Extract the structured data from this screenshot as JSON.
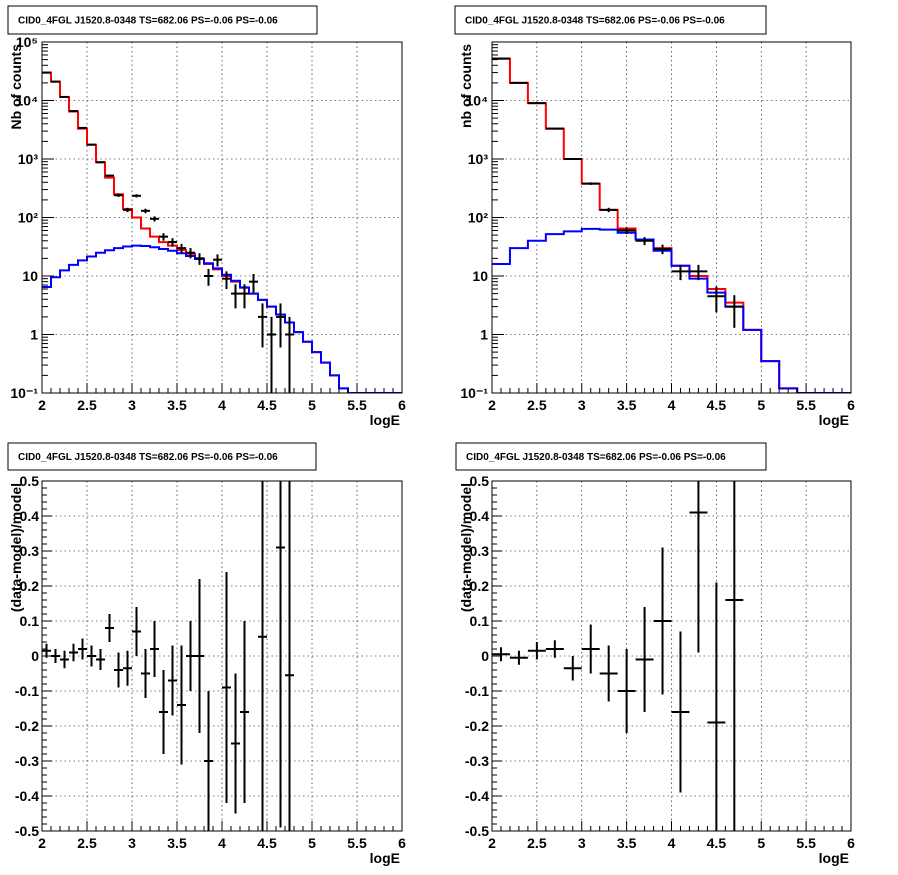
{
  "chart_data": [
    {
      "type": "line",
      "title": "CID0_4FGL J1520.8-0348 TS=682.06 PS=-0.06 PS=-0.06",
      "xlabel": "logE",
      "ylabel": "Nb of counts",
      "xlim": [
        2,
        6
      ],
      "ylim": [
        0.1,
        100000
      ],
      "yscale": "log",
      "grid": true,
      "xticks": [
        "2",
        "2.5",
        "3",
        "3.5",
        "4",
        "4.5",
        "5",
        "5.5",
        "6"
      ],
      "yticks": [
        "10⁻¹",
        "1",
        "10",
        "10²",
        "10³",
        "10⁴",
        "10⁵"
      ],
      "bin_edges": [
        2.0,
        2.1,
        2.2,
        2.3,
        2.4,
        2.5,
        2.6,
        2.7,
        2.8,
        2.9,
        3.0,
        3.1,
        3.2,
        3.3,
        3.4,
        3.5,
        3.6,
        3.7,
        3.8,
        3.9,
        4.0,
        4.1,
        4.2,
        4.3,
        4.4,
        4.5,
        4.6,
        4.7,
        4.8,
        4.9,
        5.0,
        5.1,
        5.2,
        5.3,
        5.4,
        5.5,
        5.6,
        5.7,
        5.8,
        5.9,
        6.0
      ],
      "series": [
        {
          "color": "#ff0000",
          "values": [
            30000,
            21000,
            11500,
            6500,
            3300,
            1750,
            880,
            480,
            250,
            140,
            100,
            65,
            47,
            38,
            33,
            28,
            24,
            20,
            16,
            13,
            10,
            8,
            6.3,
            5,
            3.9,
            3,
            2.2,
            1.6,
            1.1,
            0.75,
            0.5,
            0.33,
            0.2,
            0.12,
            0.1,
            0.1,
            0.1,
            0.1,
            0.1,
            0.1
          ]
        },
        {
          "color": "#0000ff",
          "values": [
            6.5,
            9.5,
            12.5,
            15.5,
            18.5,
            21.5,
            25,
            27.5,
            30,
            32,
            33,
            32.5,
            31,
            29,
            27,
            24.5,
            22,
            19.5,
            16.5,
            13.5,
            10.5,
            8.3,
            6.4,
            5,
            3.9,
            3,
            2.2,
            1.6,
            1.1,
            0.75,
            0.5,
            0.33,
            0.2,
            0.12,
            0.1,
            0.1,
            0.1,
            0.1,
            0.1,
            0.1
          ]
        }
      ],
      "points": [
        {
          "x": 2.05,
          "y": 30000,
          "err": 170
        },
        {
          "x": 2.15,
          "y": 21000,
          "err": 145
        },
        {
          "x": 2.25,
          "y": 11500,
          "err": 107
        },
        {
          "x": 2.35,
          "y": 6600,
          "err": 81
        },
        {
          "x": 2.45,
          "y": 3400,
          "err": 58
        },
        {
          "x": 2.55,
          "y": 1760,
          "err": 42
        },
        {
          "x": 2.65,
          "y": 880,
          "err": 30
        },
        {
          "x": 2.75,
          "y": 520,
          "err": 23
        },
        {
          "x": 2.85,
          "y": 240,
          "err": 15
        },
        {
          "x": 2.95,
          "y": 135,
          "err": 11.5
        },
        {
          "x": 3.05,
          "y": 235,
          "err": 15
        },
        {
          "x": 3.15,
          "y": 130,
          "err": 11.4
        },
        {
          "x": 3.25,
          "y": 95,
          "err": 9.7
        },
        {
          "x": 3.35,
          "y": 47,
          "err": 6.9
        },
        {
          "x": 3.45,
          "y": 38,
          "err": 6.2
        },
        {
          "x": 3.55,
          "y": 30,
          "err": 5.5
        },
        {
          "x": 3.65,
          "y": 25,
          "err": 5
        },
        {
          "x": 3.75,
          "y": 20,
          "err": 4.5
        },
        {
          "x": 3.85,
          "y": 10,
          "err": 3.2
        },
        {
          "x": 3.95,
          "y": 19,
          "err": 4.4
        },
        {
          "x": 4.05,
          "y": 9,
          "err": 3
        },
        {
          "x": 4.15,
          "y": 5,
          "err": 2.2
        },
        {
          "x": 4.25,
          "y": 5,
          "err": 2.2
        },
        {
          "x": 4.35,
          "y": 8,
          "err": 2.8
        },
        {
          "x": 4.45,
          "y": 2,
          "err": 1.4
        },
        {
          "x": 4.55,
          "y": 1,
          "err": 1
        },
        {
          "x": 4.65,
          "y": 2,
          "err": 1.4
        },
        {
          "x": 4.75,
          "y": 1,
          "err": 1
        }
      ]
    },
    {
      "type": "line",
      "title": "CID0_4FGL J1520.8-0348 TS=682.06 PS=-0.06 PS=-0.06",
      "xlabel": "logE",
      "ylabel": "nb of counts",
      "xlim": [
        2,
        6
      ],
      "ylim": [
        0.1,
        100000
      ],
      "yscale": "log",
      "grid": true,
      "xticks": [
        "2",
        "2.5",
        "3",
        "3.5",
        "4",
        "4.5",
        "5",
        "5.5",
        "6"
      ],
      "yticks": [
        "10⁻¹",
        "1",
        "10",
        "10²",
        "10³",
        "10⁴"
      ],
      "bin_edges": [
        2.0,
        2.2,
        2.4,
        2.6,
        2.8,
        3.0,
        3.2,
        3.4,
        3.6,
        3.8,
        4.0,
        4.2,
        4.4,
        4.6,
        4.8,
        5.0,
        5.2,
        5.4,
        5.6,
        5.8,
        6.0
      ],
      "series": [
        {
          "color": "#ff0000",
          "values": [
            52000,
            20000,
            9000,
            3300,
            1000,
            380,
            135,
            65,
            42,
            30,
            15,
            10,
            6,
            3.5,
            1.2,
            0.35,
            0.12,
            0.1,
            0.1,
            0.1
          ]
        },
        {
          "color": "#0000ff",
          "values": [
            16,
            30,
            40,
            52,
            58,
            64,
            62,
            55,
            42,
            27,
            15,
            9,
            5.2,
            3,
            1.2,
            0.35,
            0.12,
            0.1,
            0.1,
            0.1
          ]
        }
      ],
      "points": [
        {
          "x": 2.1,
          "y": 52000,
          "err": 230
        },
        {
          "x": 2.3,
          "y": 20000,
          "err": 141
        },
        {
          "x": 2.5,
          "y": 9000,
          "err": 95
        },
        {
          "x": 2.7,
          "y": 3300,
          "err": 57
        },
        {
          "x": 2.9,
          "y": 1000,
          "err": 32
        },
        {
          "x": 3.1,
          "y": 380,
          "err": 19.5
        },
        {
          "x": 3.3,
          "y": 135,
          "err": 11.6
        },
        {
          "x": 3.5,
          "y": 60,
          "err": 7.7
        },
        {
          "x": 3.7,
          "y": 40,
          "err": 6.3
        },
        {
          "x": 3.9,
          "y": 29,
          "err": 5.4
        },
        {
          "x": 4.1,
          "y": 12,
          "err": 3.5
        },
        {
          "x": 4.3,
          "y": 12,
          "err": 3.5
        },
        {
          "x": 4.5,
          "y": 4.5,
          "err": 2.1
        },
        {
          "x": 4.7,
          "y": 3,
          "err": 1.7
        }
      ]
    },
    {
      "type": "scatter",
      "title": "CID0_4FGL J1520.8-0348 TS=682.06 PS=-0.06 PS=-0.06",
      "xlabel": "logE",
      "ylabel": "(data-model)/model",
      "xlim": [
        2,
        6
      ],
      "ylim": [
        -0.5,
        0.5
      ],
      "grid": true,
      "xticks": [
        "2",
        "2.5",
        "3",
        "3.5",
        "4",
        "4.5",
        "5",
        "5.5",
        "6"
      ],
      "yticks": [
        "-0.5",
        "-0.4",
        "-0.3",
        "-0.2",
        "-0.1",
        "0",
        "0.1",
        "0.2",
        "0.3",
        "0.4",
        "0.5"
      ],
      "xerr": 0.05,
      "points": [
        {
          "x": 2.05,
          "y": 0.015,
          "err": 0.02
        },
        {
          "x": 2.15,
          "y": 0.0,
          "err": 0.02
        },
        {
          "x": 2.25,
          "y": -0.01,
          "err": 0.025
        },
        {
          "x": 2.35,
          "y": 0.01,
          "err": 0.025
        },
        {
          "x": 2.45,
          "y": 0.02,
          "err": 0.03
        },
        {
          "x": 2.55,
          "y": 0.0,
          "err": 0.03
        },
        {
          "x": 2.65,
          "y": -0.01,
          "err": 0.03
        },
        {
          "x": 2.75,
          "y": 0.08,
          "err": 0.04
        },
        {
          "x": 2.85,
          "y": -0.04,
          "err": 0.05
        },
        {
          "x": 2.95,
          "y": -0.035,
          "err": 0.05
        },
        {
          "x": 3.05,
          "y": 0.07,
          "err": 0.07
        },
        {
          "x": 3.15,
          "y": -0.05,
          "err": 0.07
        },
        {
          "x": 3.25,
          "y": 0.02,
          "err": 0.08
        },
        {
          "x": 3.35,
          "y": -0.16,
          "err": 0.12
        },
        {
          "x": 3.45,
          "y": -0.07,
          "err": 0.1
        },
        {
          "x": 3.55,
          "y": -0.14,
          "err": 0.17
        },
        {
          "x": 3.65,
          "y": 0.0,
          "err": 0.1
        },
        {
          "x": 3.75,
          "y": 0.0,
          "err": 0.22
        },
        {
          "x": 3.85,
          "y": -0.3,
          "err": 0.2
        },
        {
          "x": 4.05,
          "y": -0.09,
          "err": 0.33
        },
        {
          "x": 4.15,
          "y": -0.25,
          "err": 0.2
        },
        {
          "x": 4.25,
          "y": -0.16,
          "err": 0.26
        },
        {
          "x": 4.45,
          "y": 0.055,
          "err": 0.7
        },
        {
          "x": 4.65,
          "y": 0.31,
          "err": 0.8
        },
        {
          "x": 4.75,
          "y": -0.055,
          "err": 0.9
        }
      ]
    },
    {
      "type": "scatter",
      "title": "CID0_4FGL J1520.8-0348 TS=682.06 PS=-0.06 PS=-0.06",
      "xlabel": "logE",
      "ylabel": "(data-model)/model",
      "xlim": [
        2,
        6
      ],
      "ylim": [
        -0.5,
        0.5
      ],
      "grid": true,
      "xticks": [
        "2",
        "2.5",
        "3",
        "3.5",
        "4",
        "4.5",
        "5",
        "5.5",
        "6"
      ],
      "yticks": [
        "-0.5",
        "-0.4",
        "-0.3",
        "-0.2",
        "-0.1",
        "0",
        "0.1",
        "0.2",
        "0.3",
        "0.4",
        "0.5"
      ],
      "xerr": 0.1,
      "points": [
        {
          "x": 2.1,
          "y": 0.005,
          "err": 0.02
        },
        {
          "x": 2.3,
          "y": -0.005,
          "err": 0.02
        },
        {
          "x": 2.5,
          "y": 0.015,
          "err": 0.025
        },
        {
          "x": 2.7,
          "y": 0.02,
          "err": 0.025
        },
        {
          "x": 2.9,
          "y": -0.035,
          "err": 0.035
        },
        {
          "x": 3.1,
          "y": 0.02,
          "err": 0.07
        },
        {
          "x": 3.3,
          "y": -0.05,
          "err": 0.08
        },
        {
          "x": 3.5,
          "y": -0.1,
          "err": 0.12
        },
        {
          "x": 3.7,
          "y": -0.01,
          "err": 0.15
        },
        {
          "x": 3.9,
          "y": 0.1,
          "err": 0.21
        },
        {
          "x": 4.1,
          "y": -0.16,
          "err": 0.23
        },
        {
          "x": 4.3,
          "y": 0.41,
          "err": 0.4
        },
        {
          "x": 4.5,
          "y": -0.19,
          "err": 0.4
        },
        {
          "x": 4.7,
          "y": 0.16,
          "err": 0.7
        }
      ]
    }
  ]
}
